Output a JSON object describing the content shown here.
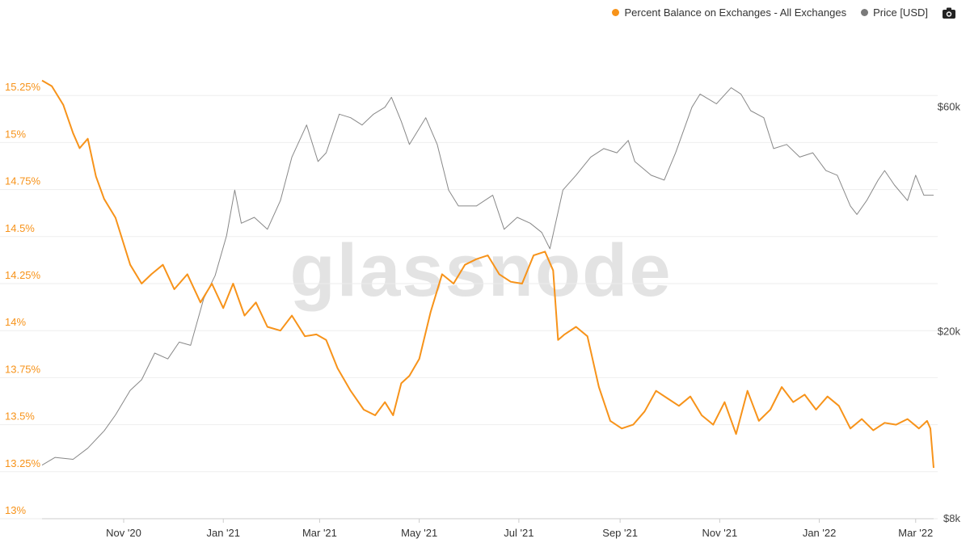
{
  "watermark": "glassnode",
  "legend": {
    "series1": "Percent Balance on Exchanges - All Exchanges",
    "series2": "Price [USD]",
    "camera_icon": "camera-icon"
  },
  "colors": {
    "series1": "#f7931a",
    "series2": "#888888",
    "grid": "#eeeeee"
  },
  "chart_data": {
    "type": "line",
    "x_ticks": [
      "Nov '20",
      "Jan '21",
      "Mar '21",
      "May '21",
      "Jul '21",
      "Sep '21",
      "Nov '21",
      "Jan '22",
      "Mar '22"
    ],
    "x_range": [
      "2020-09-12",
      "2022-03-12"
    ],
    "y_left": {
      "ticks": [
        "15.25%",
        "15%",
        "14.75%",
        "14.5%",
        "14.25%",
        "14%",
        "13.75%",
        "13.5%",
        "13.25%",
        "13%"
      ],
      "ylim": [
        13.0,
        15.5
      ],
      "unit": "%"
    },
    "y_right": {
      "ticks": [
        "$60k",
        "$20k",
        "$8k"
      ],
      "log_scale": true,
      "ylim": [
        8000,
        80000
      ]
    },
    "grid": "horizontal",
    "legend_position": "top-right",
    "series": [
      {
        "name": "Percent Balance on Exchanges - All Exchanges",
        "axis": "left",
        "x": [
          "2020-09-12",
          "2020-09-18",
          "2020-09-25",
          "2020-10-01",
          "2020-10-05",
          "2020-10-10",
          "2020-10-15",
          "2020-10-20",
          "2020-10-27",
          "2020-11-05",
          "2020-11-12",
          "2020-11-18",
          "2020-11-25",
          "2020-12-02",
          "2020-12-10",
          "2020-12-18",
          "2020-12-25",
          "2021-01-01",
          "2021-01-07",
          "2021-01-14",
          "2021-01-21",
          "2021-01-28",
          "2021-02-05",
          "2021-02-12",
          "2021-02-20",
          "2021-02-27",
          "2021-03-05",
          "2021-03-12",
          "2021-03-20",
          "2021-03-28",
          "2021-04-04",
          "2021-04-10",
          "2021-04-15",
          "2021-04-20",
          "2021-04-25",
          "2021-05-01",
          "2021-05-08",
          "2021-05-15",
          "2021-05-22",
          "2021-05-29",
          "2021-06-05",
          "2021-06-12",
          "2021-06-19",
          "2021-06-26",
          "2021-07-03",
          "2021-07-10",
          "2021-07-17",
          "2021-07-22",
          "2021-07-25",
          "2021-07-29",
          "2021-08-05",
          "2021-08-12",
          "2021-08-19",
          "2021-08-26",
          "2021-09-02",
          "2021-09-09",
          "2021-09-16",
          "2021-09-23",
          "2021-09-30",
          "2021-10-07",
          "2021-10-14",
          "2021-10-21",
          "2021-10-28",
          "2021-11-04",
          "2021-11-11",
          "2021-11-18",
          "2021-11-25",
          "2021-12-02",
          "2021-12-09",
          "2021-12-16",
          "2021-12-23",
          "2021-12-30",
          "2022-01-06",
          "2022-01-13",
          "2022-01-20",
          "2022-01-27",
          "2022-02-03",
          "2022-02-10",
          "2022-02-17",
          "2022-02-24",
          "2022-03-03",
          "2022-03-08",
          "2022-03-10",
          "2022-03-12"
        ],
        "values": [
          15.33,
          15.3,
          15.2,
          15.05,
          14.97,
          15.02,
          14.82,
          14.7,
          14.6,
          14.35,
          14.25,
          14.3,
          14.35,
          14.22,
          14.3,
          14.15,
          14.25,
          14.12,
          14.25,
          14.08,
          14.15,
          14.02,
          14.0,
          14.08,
          13.97,
          13.98,
          13.95,
          13.8,
          13.68,
          13.58,
          13.55,
          13.62,
          13.55,
          13.72,
          13.76,
          13.85,
          14.1,
          14.3,
          14.25,
          14.35,
          14.38,
          14.4,
          14.3,
          14.26,
          14.25,
          14.4,
          14.42,
          14.32,
          13.95,
          13.98,
          14.02,
          13.97,
          13.7,
          13.52,
          13.48,
          13.5,
          13.57,
          13.68,
          13.64,
          13.6,
          13.65,
          13.55,
          13.5,
          13.62,
          13.45,
          13.68,
          13.52,
          13.58,
          13.7,
          13.62,
          13.66,
          13.58,
          13.65,
          13.6,
          13.48,
          13.53,
          13.47,
          13.51,
          13.5,
          13.53,
          13.48,
          13.52,
          13.48,
          13.27
        ]
      },
      {
        "name": "Price [USD]",
        "axis": "right",
        "x": [
          "2020-09-12",
          "2020-09-20",
          "2020-10-01",
          "2020-10-10",
          "2020-10-20",
          "2020-10-27",
          "2020-11-05",
          "2020-11-12",
          "2020-11-20",
          "2020-11-28",
          "2020-12-05",
          "2020-12-12",
          "2020-12-20",
          "2020-12-27",
          "2021-01-03",
          "2021-01-08",
          "2021-01-12",
          "2021-01-20",
          "2021-01-28",
          "2021-02-05",
          "2021-02-12",
          "2021-02-21",
          "2021-02-28",
          "2021-03-05",
          "2021-03-13",
          "2021-03-20",
          "2021-03-27",
          "2021-04-03",
          "2021-04-10",
          "2021-04-14",
          "2021-04-20",
          "2021-04-25",
          "2021-05-05",
          "2021-05-12",
          "2021-05-19",
          "2021-05-25",
          "2021-06-05",
          "2021-06-15",
          "2021-06-22",
          "2021-06-30",
          "2021-07-08",
          "2021-07-15",
          "2021-07-20",
          "2021-07-28",
          "2021-08-05",
          "2021-08-14",
          "2021-08-22",
          "2021-08-30",
          "2021-09-06",
          "2021-09-10",
          "2021-09-20",
          "2021-09-28",
          "2021-10-05",
          "2021-10-15",
          "2021-10-20",
          "2021-10-30",
          "2021-11-08",
          "2021-11-14",
          "2021-11-20",
          "2021-11-28",
          "2021-12-04",
          "2021-12-12",
          "2021-12-20",
          "2021-12-28",
          "2022-01-05",
          "2022-01-12",
          "2022-01-20",
          "2022-01-24",
          "2022-01-30",
          "2022-02-06",
          "2022-02-10",
          "2022-02-16",
          "2022-02-24",
          "2022-03-01",
          "2022-03-06",
          "2022-03-12"
        ],
        "values": [
          10400,
          10800,
          10700,
          11300,
          12300,
          13300,
          15000,
          15800,
          18000,
          17500,
          19000,
          18700,
          23500,
          26300,
          32000,
          40000,
          34000,
          35000,
          33000,
          38000,
          47000,
          55000,
          46000,
          48000,
          58000,
          57000,
          55000,
          58000,
          60000,
          63000,
          56000,
          50000,
          57000,
          50000,
          40000,
          37000,
          37000,
          39000,
          33000,
          35000,
          34000,
          32500,
          30000,
          40000,
          43000,
          47000,
          49000,
          48000,
          51000,
          46000,
          43000,
          42000,
          48000,
          60000,
          64000,
          61000,
          66000,
          64000,
          59000,
          57000,
          49000,
          50000,
          47000,
          48000,
          44000,
          43000,
          37000,
          35500,
          38000,
          42000,
          44000,
          41000,
          38000,
          43000,
          39000,
          39000
        ]
      }
    ]
  }
}
